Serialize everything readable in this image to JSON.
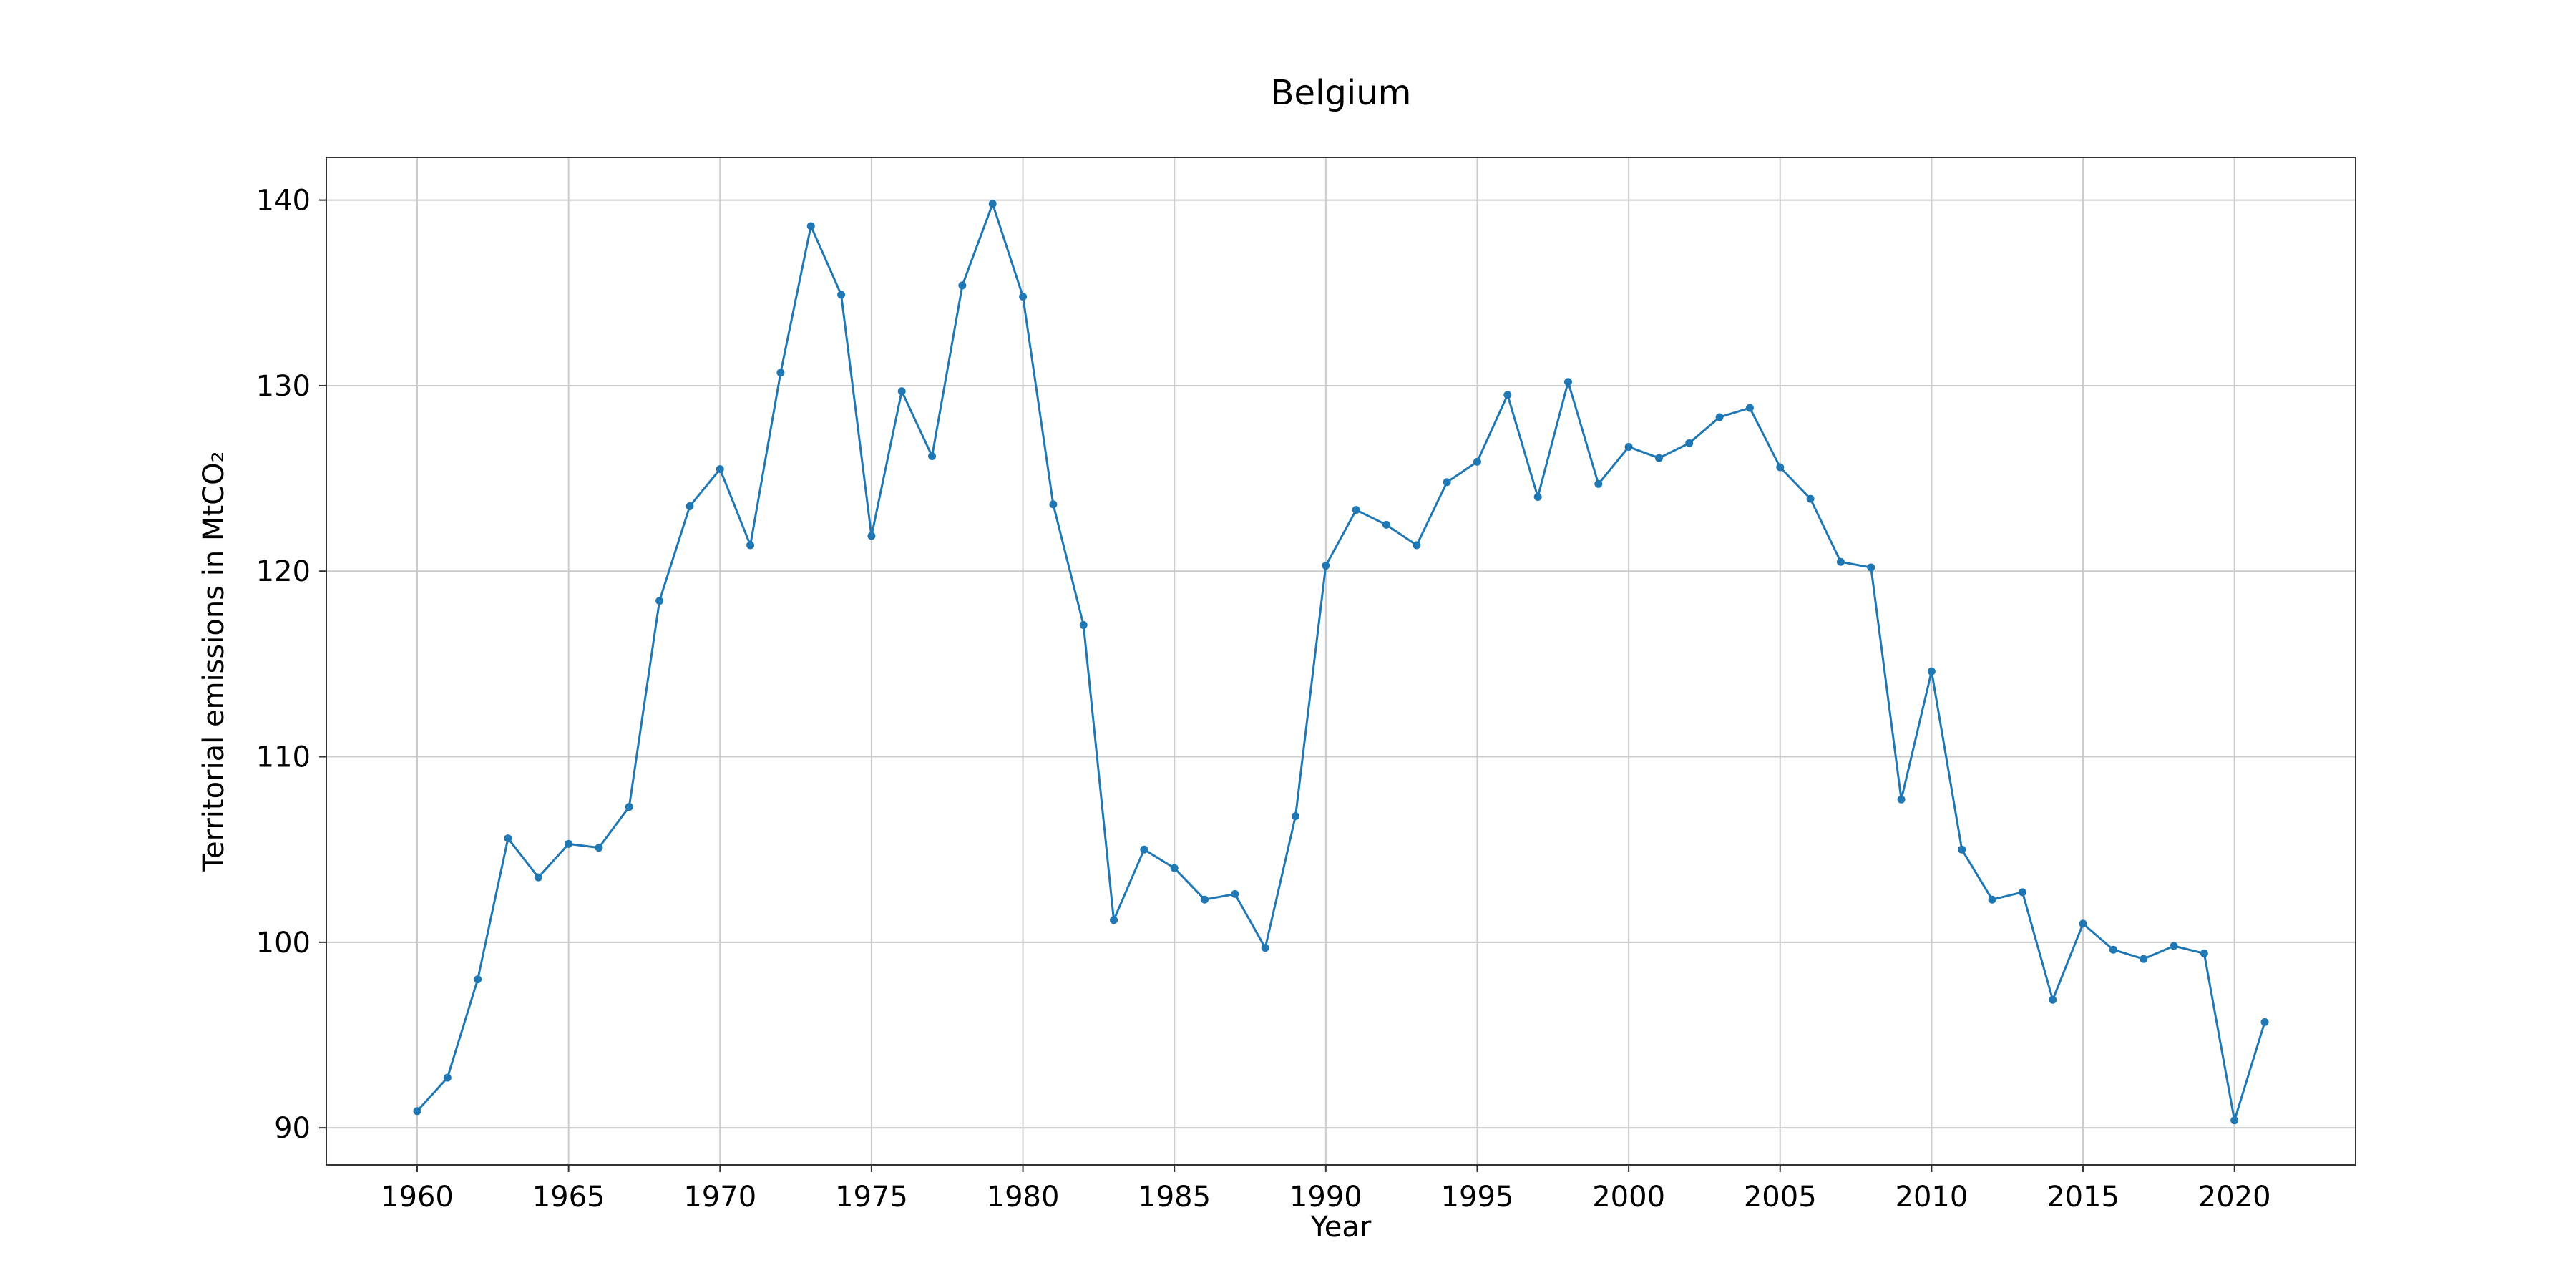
{
  "chart_data": {
    "type": "line",
    "title": "Belgium",
    "xlabel": "Year",
    "ylabel": "Territorial emissions in MtCO₂",
    "xlim": [
      1957,
      2024
    ],
    "ylim": [
      88,
      142.3
    ],
    "x_ticks": [
      1960,
      1965,
      1970,
      1975,
      1980,
      1985,
      1990,
      1995,
      2000,
      2005,
      2010,
      2015,
      2020
    ],
    "y_ticks": [
      90,
      100,
      110,
      120,
      130,
      140
    ],
    "grid": true,
    "legend": false,
    "colors": {
      "line": "#1f77b4",
      "grid": "#cccccc",
      "frame": "#333333"
    },
    "series": [
      {
        "x": [
          1960,
          1961,
          1962,
          1963,
          1964,
          1965,
          1966,
          1967,
          1968,
          1969,
          1970,
          1971,
          1972,
          1973,
          1974,
          1975,
          1976,
          1977,
          1978,
          1979,
          1980,
          1981,
          1982,
          1983,
          1984,
          1985,
          1986,
          1987,
          1988,
          1989,
          1990,
          1991,
          1992,
          1993,
          1994,
          1995,
          1996,
          1997,
          1998,
          1999,
          2000,
          2001,
          2002,
          2003,
          2004,
          2005,
          2006,
          2007,
          2008,
          2009,
          2010,
          2011,
          2012,
          2013,
          2014,
          2015,
          2016,
          2017,
          2018,
          2019,
          2020,
          2021
        ],
        "y": [
          90.9,
          92.7,
          98.0,
          105.6,
          103.5,
          105.3,
          105.1,
          107.3,
          118.4,
          123.5,
          125.5,
          121.4,
          130.7,
          138.6,
          134.9,
          121.9,
          129.7,
          126.2,
          135.4,
          139.8,
          134.8,
          123.6,
          117.1,
          101.2,
          105.0,
          104.0,
          102.3,
          102.6,
          99.7,
          106.8,
          120.3,
          123.3,
          122.5,
          121.4,
          124.8,
          125.9,
          129.5,
          124.0,
          130.2,
          124.7,
          126.7,
          126.1,
          126.9,
          128.3,
          128.8,
          125.6,
          123.9,
          120.5,
          120.2,
          107.7,
          114.6,
          105.0,
          102.3,
          102.7,
          96.9,
          101.0,
          99.6,
          99.1,
          99.8,
          99.4,
          90.4,
          95.7
        ]
      }
    ]
  }
}
